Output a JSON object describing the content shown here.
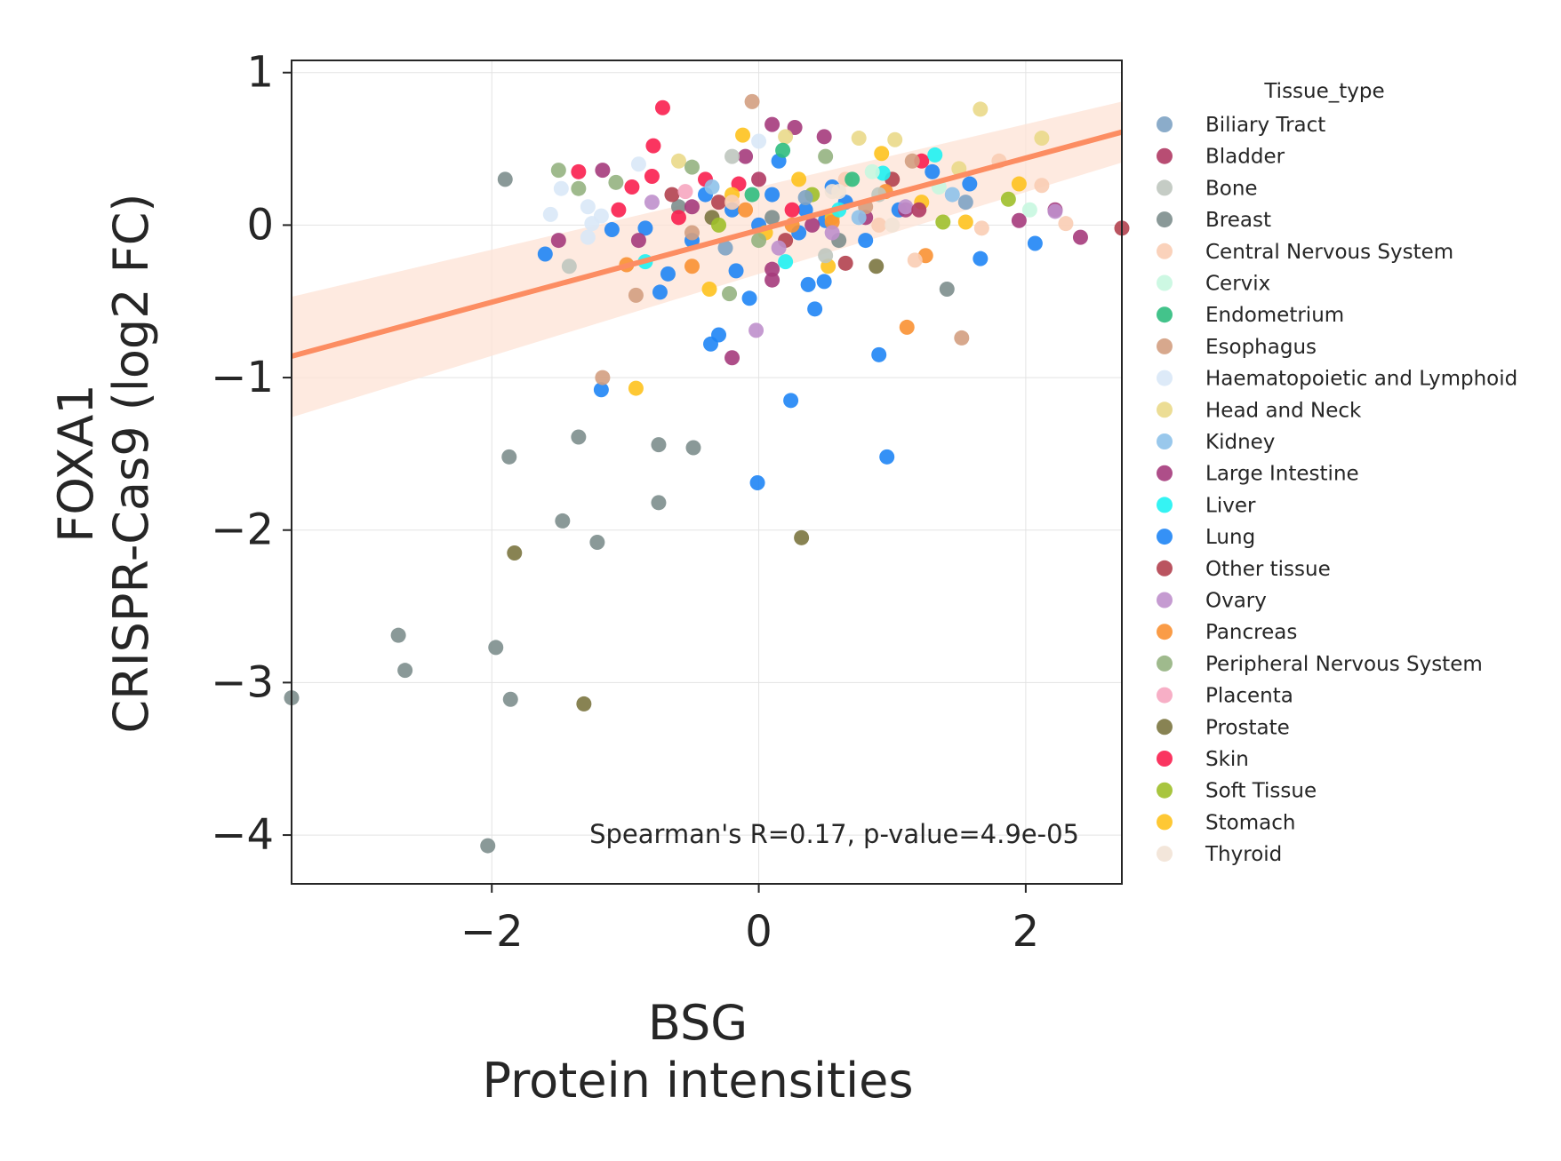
{
  "chart_data": {
    "type": "scatter",
    "title": "",
    "xlabel_lines": [
      "BSG",
      "Protein intensities"
    ],
    "ylabel_lines": [
      "FOXA1",
      "CRISPR-Cas9 (log2 FC)"
    ],
    "xlim": [
      -3.5,
      2.72
    ],
    "ylim": [
      -4.32,
      1.08
    ],
    "xticks": [
      -2,
      0,
      2
    ],
    "xtick_labels": [
      "−2",
      "0",
      "2"
    ],
    "yticks": [
      1,
      0,
      -1,
      -2,
      -3,
      -4
    ],
    "ytick_labels": [
      "1",
      "0",
      "−1",
      "−2",
      "−3",
      "−4"
    ],
    "grid": true,
    "annotation": "Spearman's R=0.17, p-value=4.9e-05",
    "regression": {
      "x": [
        -3.5,
        2.72
      ],
      "y": [
        -0.86,
        0.61
      ],
      "band_upper": [
        -0.47,
        0.81
      ],
      "band_lower": [
        -1.26,
        0.41
      ],
      "color": "#fc8d62",
      "band_color": "#fde3d6"
    },
    "legend": {
      "title": "Tissue_type",
      "placement": "outside-right",
      "entries": [
        {
          "name": "Biliary Tract",
          "color": "#7ea3c4"
        },
        {
          "name": "Bladder",
          "color": "#b03a64"
        },
        {
          "name": "Bone",
          "color": "#bfc7bf"
        },
        {
          "name": "Breast",
          "color": "#7d8e8d"
        },
        {
          "name": "Central Nervous System",
          "color": "#f9cdb4"
        },
        {
          "name": "Cervix",
          "color": "#c8f7e0"
        },
        {
          "name": "Endometrium",
          "color": "#2fbc7e"
        },
        {
          "name": "Esophagus",
          "color": "#d39e81"
        },
        {
          "name": "Haematopoietic and Lymphoid",
          "color": "#d9e8f7"
        },
        {
          "name": "Head and Neck",
          "color": "#ead98a"
        },
        {
          "name": "Kidney",
          "color": "#8ec2ea"
        },
        {
          "name": "Large Intestine",
          "color": "#a53b7c"
        },
        {
          "name": "Liver",
          "color": "#1ff2f2"
        },
        {
          "name": "Lung",
          "color": "#1f85f5"
        },
        {
          "name": "Other tissue",
          "color": "#b2414f"
        },
        {
          "name": "Ovary",
          "color": "#bf90cc"
        },
        {
          "name": "Pancreas",
          "color": "#f99133"
        },
        {
          "name": "Peripheral Nervous System",
          "color": "#95b281"
        },
        {
          "name": "Placenta",
          "color": "#f6a6c0"
        },
        {
          "name": "Prostate",
          "color": "#7b7640"
        },
        {
          "name": "Skin",
          "color": "#f91f4f"
        },
        {
          "name": "Soft Tissue",
          "color": "#9fbf2a"
        },
        {
          "name": "Stomach",
          "color": "#fec21e"
        },
        {
          "name": "Thyroid",
          "color": "#f2e3d6"
        }
      ]
    },
    "series": [
      {
        "name": "Breast",
        "points": [
          [
            -1.9,
            0.3
          ],
          [
            -3.5,
            -3.1
          ],
          [
            -2.7,
            -2.69
          ],
          [
            -2.65,
            -2.92
          ],
          [
            -2.03,
            -4.07
          ],
          [
            -1.97,
            -2.77
          ],
          [
            -1.86,
            -3.11
          ],
          [
            -1.87,
            -1.52
          ],
          [
            -1.47,
            -1.94
          ],
          [
            -1.35,
            -1.39
          ],
          [
            -1.21,
            -2.08
          ],
          [
            -0.75,
            -1.44
          ],
          [
            -0.75,
            -1.82
          ],
          [
            -0.49,
            -1.46
          ],
          [
            1.41,
            -0.42
          ],
          [
            -0.6,
            0.12
          ],
          [
            0.1,
            0.05
          ],
          [
            0.6,
            -0.1
          ]
        ]
      },
      {
        "name": "Prostate",
        "points": [
          [
            -1.83,
            -2.15
          ],
          [
            -1.31,
            -3.14
          ],
          [
            0.32,
            -2.05
          ],
          [
            0.88,
            -0.27
          ],
          [
            -0.35,
            0.05
          ]
        ]
      },
      {
        "name": "Lung",
        "points": [
          [
            -0.36,
            -0.78
          ],
          [
            -0.3,
            -0.72
          ],
          [
            -0.07,
            -0.48
          ],
          [
            -0.01,
            -1.69
          ],
          [
            0.24,
            -1.15
          ],
          [
            0.9,
            -0.85
          ],
          [
            0.96,
            -1.52
          ],
          [
            -1.18,
            -1.08
          ],
          [
            -0.74,
            -0.44
          ],
          [
            -0.68,
            -0.32
          ],
          [
            0.37,
            -0.39
          ],
          [
            0.42,
            -0.55
          ],
          [
            0.49,
            -0.37
          ],
          [
            -0.17,
            -0.3
          ],
          [
            1.66,
            -0.22
          ],
          [
            2.07,
            -0.12
          ],
          [
            -0.2,
            0.1
          ],
          [
            0.1,
            0.2
          ],
          [
            0.5,
            0.03
          ],
          [
            0.3,
            -0.05
          ],
          [
            -0.5,
            -0.1
          ],
          [
            0.8,
            -0.1
          ],
          [
            1.3,
            0.35
          ],
          [
            1.58,
            0.27
          ],
          [
            0.55,
            0.25
          ],
          [
            -0.4,
            0.2
          ],
          [
            0.0,
            0.0
          ],
          [
            -1.1,
            -0.03
          ],
          [
            -1.6,
            -0.19
          ],
          [
            0.15,
            0.42
          ],
          [
            0.65,
            0.15
          ],
          [
            1.05,
            0.1
          ],
          [
            -0.85,
            -0.02
          ],
          [
            0.35,
            0.1
          ]
        ]
      },
      {
        "name": "Skin",
        "points": [
          [
            -0.72,
            0.77
          ],
          [
            -0.79,
            0.52
          ],
          [
            -1.35,
            0.35
          ],
          [
            -1.05,
            0.1
          ],
          [
            -0.95,
            0.25
          ],
          [
            -0.6,
            0.05
          ],
          [
            -0.4,
            0.3
          ],
          [
            -0.15,
            0.27
          ],
          [
            0.25,
            0.1
          ],
          [
            1.22,
            0.42
          ],
          [
            -0.8,
            0.32
          ]
        ]
      },
      {
        "name": "Large Intestine",
        "points": [
          [
            0.1,
            0.66
          ],
          [
            0.27,
            0.64
          ],
          [
            0.49,
            0.58
          ],
          [
            -0.2,
            -0.87
          ],
          [
            0.1,
            -0.36
          ],
          [
            0.1,
            -0.29
          ],
          [
            -1.5,
            -0.1
          ],
          [
            -1.17,
            0.36
          ],
          [
            -0.9,
            -0.1
          ],
          [
            -0.5,
            0.12
          ],
          [
            0.4,
            0.0
          ],
          [
            0.8,
            0.05
          ],
          [
            1.1,
            0.1
          ],
          [
            1.95,
            0.03
          ],
          [
            2.22,
            0.1
          ],
          [
            2.41,
            -0.08
          ],
          [
            -0.1,
            0.45
          ]
        ]
      },
      {
        "name": "Other tissue",
        "points": [
          [
            2.72,
            -0.02
          ],
          [
            0.65,
            -0.25
          ],
          [
            -0.3,
            0.15
          ],
          [
            0.2,
            -0.1
          ],
          [
            -0.65,
            0.2
          ],
          [
            1.0,
            0.3
          ]
        ]
      },
      {
        "name": "Stomach",
        "points": [
          [
            -0.92,
            -1.07
          ],
          [
            -0.37,
            -0.42
          ],
          [
            -0.12,
            0.59
          ],
          [
            0.3,
            0.3
          ],
          [
            0.52,
            -0.27
          ],
          [
            0.92,
            0.47
          ],
          [
            1.22,
            0.15
          ],
          [
            1.55,
            0.02
          ],
          [
            1.95,
            0.27
          ],
          [
            0.55,
            0.05
          ],
          [
            -0.2,
            0.2
          ],
          [
            0.05,
            -0.05
          ]
        ]
      },
      {
        "name": "Pancreas",
        "points": [
          [
            -0.99,
            -0.26
          ],
          [
            1.11,
            -0.67
          ],
          [
            1.25,
            -0.2
          ],
          [
            -0.5,
            -0.27
          ],
          [
            0.95,
            0.22
          ],
          [
            0.55,
            0.02
          ],
          [
            -0.1,
            0.1
          ],
          [
            0.25,
            0.0
          ]
        ]
      },
      {
        "name": "Esophagus",
        "points": [
          [
            -0.05,
            0.81
          ],
          [
            -1.17,
            -1.0
          ],
          [
            -0.92,
            -0.46
          ],
          [
            1.52,
            -0.74
          ],
          [
            1.15,
            0.42
          ],
          [
            0.8,
            0.12
          ],
          [
            -0.5,
            -0.05
          ]
        ]
      },
      {
        "name": "Ovary",
        "points": [
          [
            -0.02,
            -0.69
          ],
          [
            0.55,
            -0.05
          ],
          [
            1.1,
            0.12
          ],
          [
            -0.8,
            0.15
          ],
          [
            2.22,
            0.09
          ],
          [
            0.15,
            -0.15
          ]
        ]
      },
      {
        "name": "Head and Neck",
        "points": [
          [
            1.66,
            0.76
          ],
          [
            0.75,
            0.57
          ],
          [
            1.02,
            0.56
          ],
          [
            2.12,
            0.57
          ],
          [
            0.2,
            0.58
          ],
          [
            1.5,
            0.37
          ],
          [
            -0.6,
            0.42
          ]
        ]
      },
      {
        "name": "Central Nervous System",
        "points": [
          [
            2.12,
            0.26
          ],
          [
            2.3,
            0.01
          ],
          [
            1.67,
            -0.02
          ],
          [
            1.17,
            -0.23
          ],
          [
            0.9,
            0.0
          ],
          [
            0.65,
            0.3
          ],
          [
            1.8,
            0.42
          ],
          [
            -0.2,
            0.15
          ]
        ]
      },
      {
        "name": "Peripheral Nervous System",
        "points": [
          [
            -1.5,
            0.36
          ],
          [
            -1.35,
            0.24
          ],
          [
            -1.07,
            0.28
          ],
          [
            -0.5,
            0.38
          ],
          [
            -0.22,
            -0.45
          ],
          [
            0.5,
            0.45
          ],
          [
            0.0,
            -0.1
          ]
        ]
      },
      {
        "name": "Soft Tissue",
        "points": [
          [
            1.87,
            0.17
          ],
          [
            0.4,
            0.2
          ],
          [
            -0.3,
            0.0
          ],
          [
            1.38,
            0.02
          ]
        ]
      },
      {
        "name": "Liver",
        "points": [
          [
            -0.85,
            -0.24
          ],
          [
            0.2,
            -0.24
          ],
          [
            0.93,
            0.34
          ],
          [
            1.32,
            0.46
          ],
          [
            0.6,
            0.1
          ]
        ]
      },
      {
        "name": "Endometrium",
        "points": [
          [
            0.18,
            0.49
          ],
          [
            -0.05,
            0.2
          ],
          [
            0.7,
            0.3
          ]
        ]
      },
      {
        "name": "Bone",
        "points": [
          [
            -1.42,
            -0.27
          ],
          [
            -0.2,
            0.45
          ],
          [
            0.9,
            0.2
          ],
          [
            0.5,
            -0.2
          ]
        ]
      },
      {
        "name": "Biliary Tract",
        "points": [
          [
            0.35,
            0.18
          ],
          [
            -0.25,
            -0.15
          ],
          [
            1.55,
            0.15
          ]
        ]
      },
      {
        "name": "Haematopoietic and Lymphoid",
        "points": [
          [
            -1.56,
            0.07
          ],
          [
            -1.48,
            0.24
          ],
          [
            -1.28,
            0.12
          ],
          [
            -1.28,
            -0.08
          ],
          [
            -1.25,
            0.01
          ],
          [
            -1.18,
            0.06
          ],
          [
            -0.9,
            0.4
          ],
          [
            0.0,
            0.55
          ]
        ]
      },
      {
        "name": "Cervix",
        "points": [
          [
            2.03,
            0.1
          ],
          [
            0.85,
            0.35
          ],
          [
            1.35,
            0.25
          ]
        ]
      },
      {
        "name": "Kidney",
        "points": [
          [
            0.75,
            0.05
          ],
          [
            -0.35,
            0.25
          ],
          [
            1.45,
            0.2
          ]
        ]
      },
      {
        "name": "Placenta",
        "points": [
          [
            -0.55,
            0.22
          ]
        ]
      },
      {
        "name": "Thyroid",
        "points": [
          [
            0.55,
            0.22
          ],
          [
            0.6,
            0.22
          ],
          [
            1.0,
            0.0
          ]
        ]
      },
      {
        "name": "Bladder",
        "points": [
          [
            0.0,
            0.3
          ],
          [
            1.2,
            0.1
          ]
        ]
      }
    ]
  }
}
